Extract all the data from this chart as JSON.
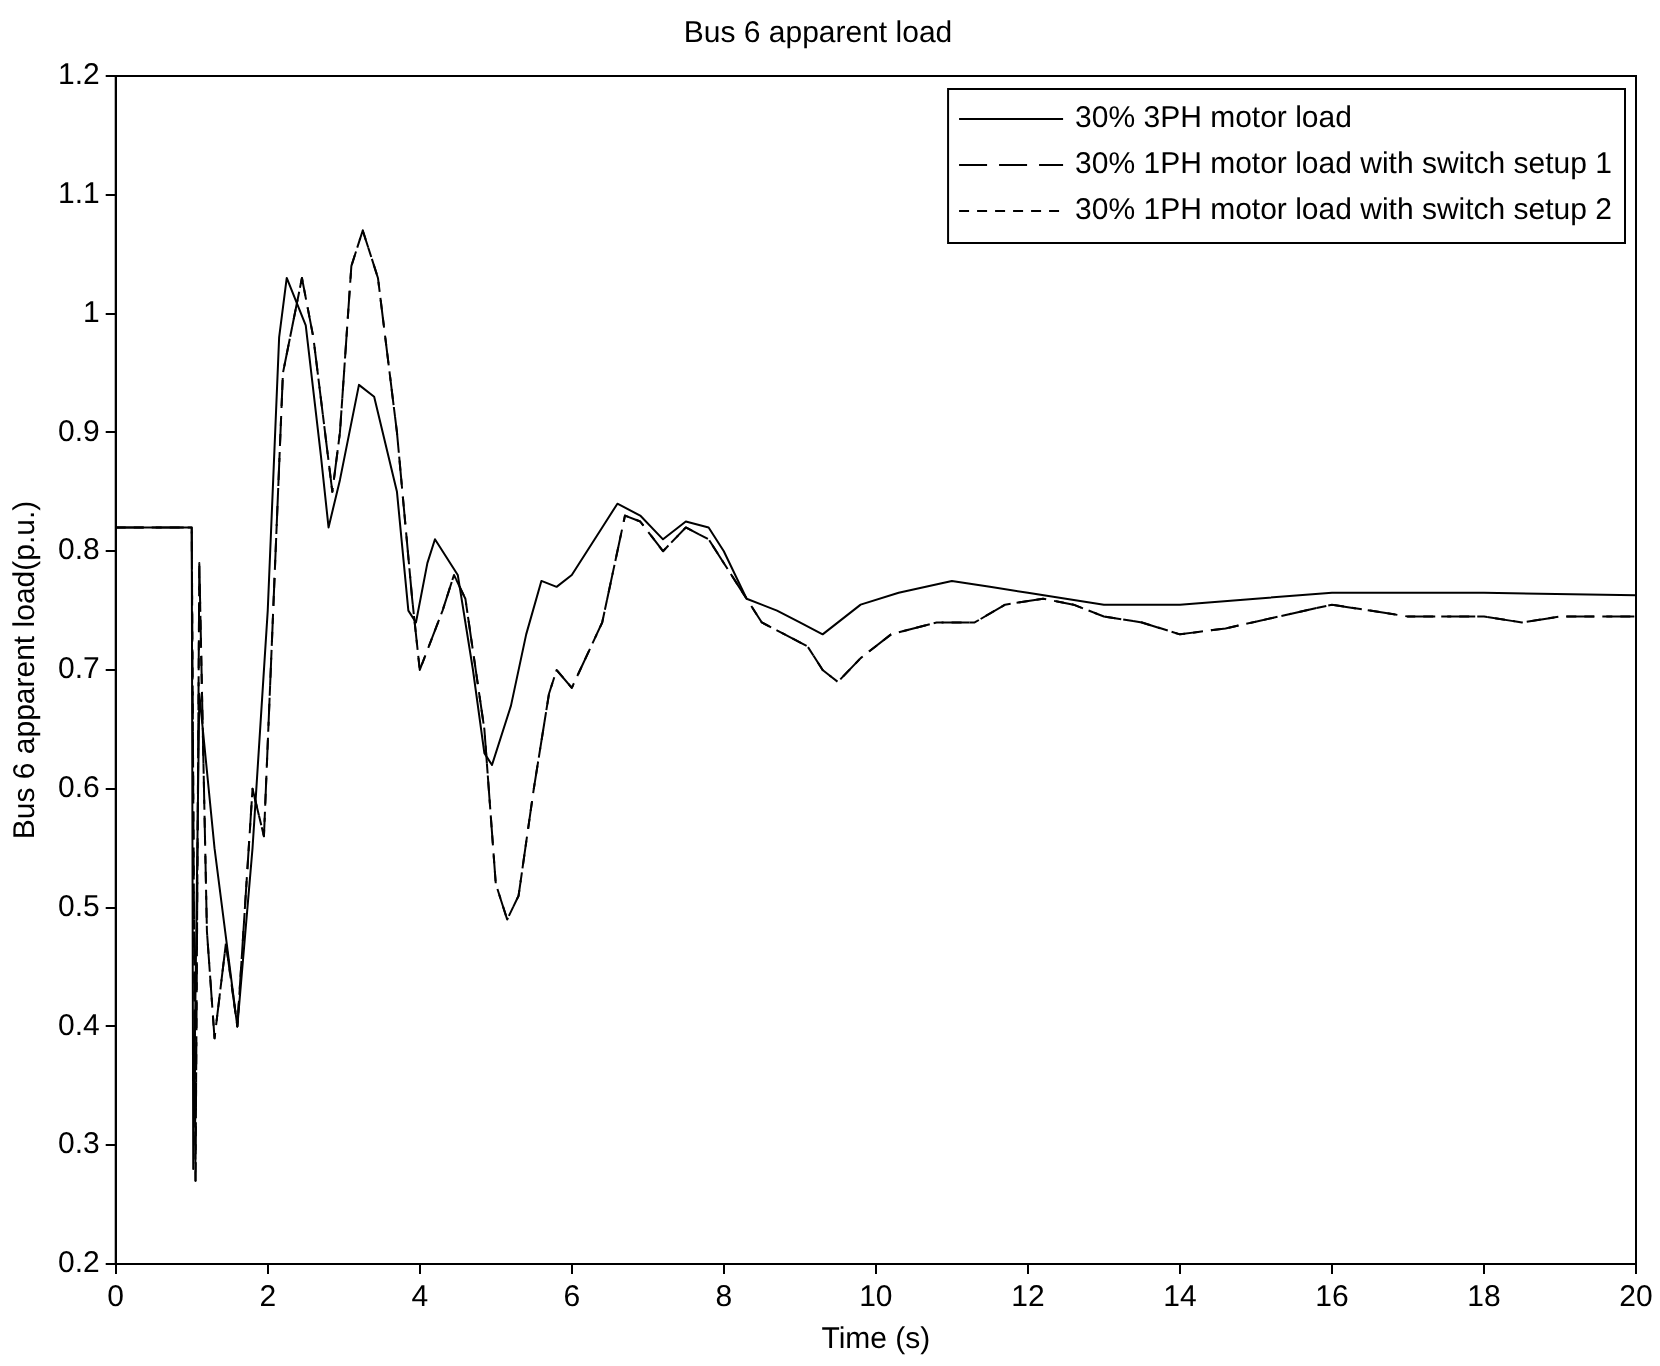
{
  "chart_data": {
    "type": "line",
    "title": "Bus 6 apparent load",
    "xlabel": "Time (s)",
    "ylabel": "Bus 6 apparent load(p.u.)",
    "xlim": [
      0,
      20
    ],
    "xticks": [
      0,
      2,
      4,
      6,
      8,
      10,
      12,
      14,
      16,
      18,
      20
    ],
    "ylim": [
      0.2,
      1.2
    ],
    "yticks": [
      0.2,
      0.3,
      0.4,
      0.5,
      0.6,
      0.7,
      0.8,
      0.9,
      1,
      1.1,
      1.2
    ],
    "grid": false,
    "legend": "top right",
    "marker": "none",
    "series": [
      {
        "name": "30% 3PH motor load",
        "color": "#000000",
        "line_style": "solid",
        "x": [
          0,
          1,
          1.02,
          1.1,
          1.3,
          1.6,
          1.8,
          2,
          2.15,
          2.25,
          2.5,
          2.7,
          2.8,
          2.95,
          3.2,
          3.4,
          3.7,
          3.85,
          3.95,
          4.1,
          4.2,
          4.5,
          4.7,
          4.85,
          4.95,
          5.2,
          5.4,
          5.6,
          5.8,
          6,
          6.4,
          6.6,
          6.9,
          7.2,
          7.5,
          7.8,
          8,
          8.3,
          8.7,
          9,
          9.3,
          9.8,
          10.3,
          11,
          11.5,
          12,
          13,
          14,
          15,
          16,
          18,
          20
        ],
        "values": [
          0.82,
          0.82,
          0.28,
          0.68,
          0.55,
          0.4,
          0.55,
          0.75,
          0.98,
          1.03,
          0.99,
          0.88,
          0.82,
          0.86,
          0.94,
          0.93,
          0.85,
          0.75,
          0.74,
          0.79,
          0.81,
          0.78,
          0.7,
          0.63,
          0.62,
          0.67,
          0.73,
          0.775,
          0.77,
          0.78,
          0.82,
          0.84,
          0.83,
          0.81,
          0.825,
          0.82,
          0.8,
          0.76,
          0.75,
          0.74,
          0.73,
          0.755,
          0.765,
          0.775,
          0.77,
          0.765,
          0.755,
          0.755,
          0.76,
          0.765,
          0.765,
          0.763
        ]
      },
      {
        "name": "30% 1PH motor load with switch setup 1",
        "color": "#000000",
        "line_style": "dashed",
        "x": [
          0,
          1,
          1.05,
          1.1,
          1.2,
          1.3,
          1.45,
          1.6,
          1.8,
          1.95,
          2.2,
          2.45,
          2.6,
          2.85,
          2.95,
          3.1,
          3.25,
          3.45,
          3.7,
          3.9,
          4,
          4.3,
          4.45,
          4.6,
          4.85,
          5,
          5.15,
          5.3,
          5.5,
          5.7,
          5.8,
          6,
          6.4,
          6.6,
          6.7,
          6.9,
          7.2,
          7.5,
          7.8,
          8.2,
          8.5,
          8.8,
          9.1,
          9.3,
          9.5,
          9.8,
          10.2,
          10.8,
          11.3,
          11.7,
          12.2,
          12.6,
          13,
          13.5,
          14,
          14.6,
          15.3,
          16,
          16.5,
          17,
          18,
          18.5,
          19,
          20
        ],
        "values": [
          0.82,
          0.82,
          0.27,
          0.79,
          0.48,
          0.39,
          0.47,
          0.4,
          0.6,
          0.56,
          0.95,
          1.03,
          0.98,
          0.85,
          0.9,
          1.04,
          1.07,
          1.03,
          0.9,
          0.76,
          0.7,
          0.75,
          0.78,
          0.76,
          0.65,
          0.52,
          0.49,
          0.51,
          0.6,
          0.68,
          0.7,
          0.685,
          0.74,
          0.8,
          0.83,
          0.825,
          0.8,
          0.82,
          0.81,
          0.77,
          0.74,
          0.73,
          0.72,
          0.7,
          0.69,
          0.71,
          0.73,
          0.74,
          0.74,
          0.755,
          0.76,
          0.755,
          0.745,
          0.74,
          0.73,
          0.735,
          0.745,
          0.755,
          0.75,
          0.745,
          0.745,
          0.74,
          0.745,
          0.745
        ]
      },
      {
        "name": "30% 1PH motor load with switch setup 2",
        "color": "#000000",
        "line_style": "dotted",
        "x": [
          0,
          1,
          1.05,
          1.1,
          1.2,
          1.3,
          1.45,
          1.6,
          1.8,
          1.95,
          2.2,
          2.45,
          2.6,
          2.85,
          2.95,
          3.1,
          3.25,
          3.45,
          3.7,
          3.9,
          4,
          4.3,
          4.45,
          4.6,
          4.85,
          5,
          5.15,
          5.3,
          5.5,
          5.7,
          5.8,
          6,
          6.4,
          6.6,
          6.7,
          6.9,
          7.2,
          7.5,
          7.8,
          8.2,
          8.5,
          8.8,
          9.1,
          9.3,
          9.5,
          9.8,
          10.2,
          10.8,
          11.3,
          11.7,
          12.2,
          12.6,
          13,
          13.5,
          14,
          14.6,
          15.3,
          16,
          16.5,
          17,
          18,
          18.5,
          19,
          20
        ],
        "values": [
          0.82,
          0.82,
          0.27,
          0.79,
          0.48,
          0.39,
          0.47,
          0.4,
          0.6,
          0.56,
          0.95,
          1.03,
          0.98,
          0.85,
          0.9,
          1.04,
          1.07,
          1.03,
          0.9,
          0.76,
          0.7,
          0.75,
          0.78,
          0.76,
          0.65,
          0.52,
          0.49,
          0.51,
          0.6,
          0.68,
          0.7,
          0.685,
          0.74,
          0.8,
          0.83,
          0.825,
          0.8,
          0.82,
          0.81,
          0.77,
          0.74,
          0.73,
          0.72,
          0.7,
          0.69,
          0.71,
          0.73,
          0.74,
          0.74,
          0.755,
          0.76,
          0.755,
          0.745,
          0.74,
          0.73,
          0.735,
          0.745,
          0.755,
          0.75,
          0.745,
          0.745,
          0.74,
          0.745,
          0.745
        ]
      }
    ]
  }
}
